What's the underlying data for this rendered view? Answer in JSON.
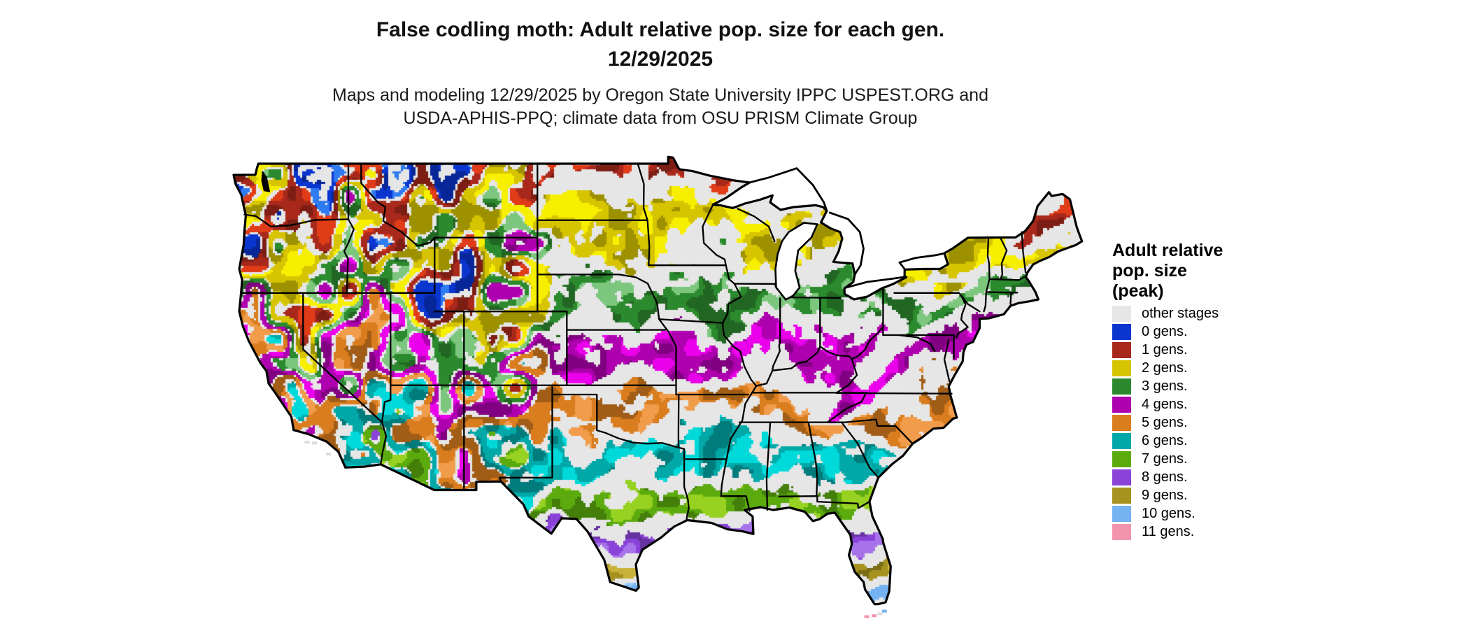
{
  "title": {
    "line1": "False codling moth: Adult relative pop. size for each gen.",
    "line2": "12/29/2025"
  },
  "subtitle": {
    "line1": "Maps and modeling 12/29/2025 by Oregon State University IPPC USPEST.ORG and",
    "line2": "USDA-APHIS-PPQ; climate data from OSU PRISM Climate Group"
  },
  "legend": {
    "title_lines": [
      "Adult relative",
      "pop. size",
      "(peak)"
    ],
    "items": [
      {
        "label": "other stages",
        "color": "#e6e6e6"
      },
      {
        "label": "0 gens.",
        "color": "#0a35cf"
      },
      {
        "label": "1 gens.",
        "color": "#a8291b"
      },
      {
        "label": "2 gens.",
        "color": "#d6c400"
      },
      {
        "label": "3 gens.",
        "color": "#2c8a2e"
      },
      {
        "label": "4 gens.",
        "color": "#ae00ae"
      },
      {
        "label": "5 gens.",
        "color": "#d97d1e"
      },
      {
        "label": "6 gens.",
        "color": "#00a8a8"
      },
      {
        "label": "7 gens.",
        "color": "#5cab0e"
      },
      {
        "label": "8 gens.",
        "color": "#8a42d8"
      },
      {
        "label": "9 gens.",
        "color": "#a6921e"
      },
      {
        "label": "10 gens.",
        "color": "#74b2f2"
      },
      {
        "label": "11 gens.",
        "color": "#f295ac"
      }
    ]
  },
  "chart_data": {
    "type": "map",
    "subtype": "raster choropleth of the contiguous United States with black state borders",
    "title": "False codling moth: Adult relative pop. size for each gen. 12/29/2025",
    "legend_title": "Adult relative pop. size (peak)",
    "categories": [
      "other stages",
      "0 gens.",
      "1 gens.",
      "2 gens.",
      "3 gens.",
      "4 gens.",
      "5 gens.",
      "6 gens.",
      "7 gens.",
      "8 gens.",
      "9 gens.",
      "10 gens.",
      "11 gens."
    ],
    "colors": [
      "#e6e6e6",
      "#0a35cf",
      "#a8291b",
      "#d6c400",
      "#2c8a2e",
      "#ae00ae",
      "#d97d1e",
      "#00a8a8",
      "#5cab0e",
      "#8a42d8",
      "#a6921e",
      "#74b2f2",
      "#f295ac"
    ],
    "spatial_pattern": "Generations increase north to south: 1-2 gens. (red/yellow) across the northern tier and New England; 3 gens. (green) Nebraska-Iowa-Illinois-Ohio-Pennsylvania; 4 gens. (magenta) Kansas-Missouri-Kentucky-Virginia; 5 gens. (orange) Oklahoma-Arkansas-Tennessee-Carolinas; 6 gens. (teal) central Texas and Gulf states; 7 gens. (yellow-green) Gulf coast and north Florida; 8 gens. (purple) south Texas and central Florida; 9 gens. (olive) Texas tip and south Florida; 10-11 gens. (light blue/pink) at the southernmost tips and Florida Keys; the mountain West is a fine mosaic of 0-4 gens. with gray 'other stages' throughout."
  }
}
